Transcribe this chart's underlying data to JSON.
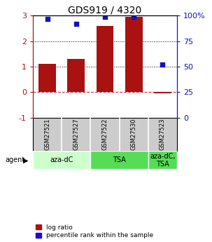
{
  "title": "GDS919 / 4320",
  "samples": [
    "GSM27521",
    "GSM27527",
    "GSM27522",
    "GSM27530",
    "GSM27523"
  ],
  "log_ratio": [
    1.1,
    1.3,
    2.6,
    2.95,
    -0.05
  ],
  "percentile": [
    97,
    92,
    99,
    99,
    52
  ],
  "ylim_left": [
    -1,
    3
  ],
  "ylim_right": [
    0,
    100
  ],
  "yticks_left": [
    -1,
    0,
    1,
    2,
    3
  ],
  "yticks_right": [
    0,
    25,
    50,
    75,
    100
  ],
  "yticklabels_right": [
    "0",
    "25",
    "50",
    "75",
    "100%"
  ],
  "hlines_dotted": [
    1,
    2
  ],
  "hline_dashed_color": "#cc3333",
  "bar_color": "#aa1111",
  "dot_color": "#1111cc",
  "agent_groups": [
    {
      "label": "aza-dC",
      "span": [
        0,
        2
      ],
      "color": "#ccffcc"
    },
    {
      "label": "TSA",
      "span": [
        2,
        4
      ],
      "color": "#55dd55"
    },
    {
      "label": "aza-dC,\nTSA",
      "span": [
        4,
        5
      ],
      "color": "#55dd55"
    }
  ],
  "legend_bar_label": "log ratio",
  "legend_dot_label": "percentile rank within the sample",
  "background_color": "#ffffff"
}
